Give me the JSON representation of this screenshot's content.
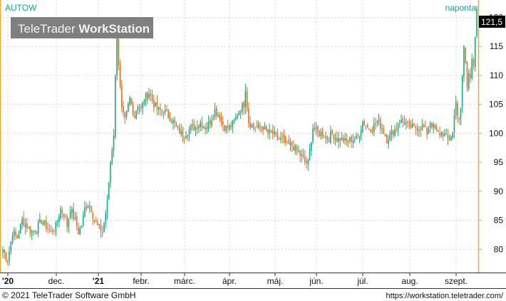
{
  "chart_data": {
    "type": "candlestick",
    "symbol": "AUTOW",
    "interval": "naponta",
    "watermark": {
      "brand_light": "TeleTrader ",
      "brand_bold": "WorkStation"
    },
    "last_price": "121,5",
    "ylim": [
      76,
      123
    ],
    "y_ticks": [
      {
        "value": 80,
        "label": "80"
      },
      {
        "value": 85,
        "label": "85"
      },
      {
        "value": 90,
        "label": "90"
      },
      {
        "value": 95,
        "label": "95"
      },
      {
        "value": 100,
        "label": "100"
      },
      {
        "value": 105,
        "label": "105"
      },
      {
        "value": 110,
        "label": "110"
      },
      {
        "value": 115,
        "label": "115"
      },
      {
        "value": 120,
        "label": "120"
      }
    ],
    "x_ticks": [
      {
        "label": "'20",
        "bold": true
      },
      {
        "label": "dec.",
        "bold": false
      },
      {
        "label": "'21",
        "bold": true
      },
      {
        "label": "febr.",
        "bold": false
      },
      {
        "label": "márc.",
        "bold": false
      },
      {
        "label": "ápr.",
        "bold": false
      },
      {
        "label": "máj.",
        "bold": false
      },
      {
        "label": "jún.",
        "bold": false
      },
      {
        "label": "júl.",
        "bold": false
      },
      {
        "label": "aug.",
        "bold": false
      },
      {
        "label": "szept.",
        "bold": false
      }
    ],
    "price_path": [
      [
        0,
        80
      ],
      [
        3,
        78
      ],
      [
        6,
        83
      ],
      [
        9,
        82
      ],
      [
        12,
        85
      ],
      [
        15,
        84
      ],
      [
        18,
        83
      ],
      [
        21,
        83.5
      ],
      [
        24,
        85
      ],
      [
        27,
        84
      ],
      [
        30,
        83
      ],
      [
        33,
        84
      ],
      [
        36,
        87
      ],
      [
        38,
        86
      ],
      [
        40,
        84
      ],
      [
        42,
        87
      ],
      [
        45,
        85
      ],
      [
        47,
        83
      ],
      [
        49,
        84
      ],
      [
        51,
        87
      ],
      [
        53,
        88
      ],
      [
        55,
        87
      ],
      [
        57,
        85
      ],
      [
        59,
        84
      ],
      [
        62,
        83
      ],
      [
        65,
        88
      ],
      [
        67,
        95
      ],
      [
        69,
        100
      ],
      [
        71,
        119
      ],
      [
        72,
        112
      ],
      [
        74,
        104
      ],
      [
        76,
        102
      ],
      [
        79,
        106
      ],
      [
        82,
        103
      ],
      [
        84,
        105
      ],
      [
        86,
        104
      ],
      [
        88,
        106
      ],
      [
        91,
        107
      ],
      [
        94,
        105
      ],
      [
        97,
        104
      ],
      [
        100,
        104
      ],
      [
        103,
        103
      ],
      [
        106,
        102
      ],
      [
        108,
        101
      ],
      [
        111,
        100
      ],
      [
        114,
        100
      ],
      [
        117,
        101
      ],
      [
        120,
        101
      ],
      [
        123,
        102
      ],
      [
        126,
        101
      ],
      [
        129,
        102
      ],
      [
        132,
        104
      ],
      [
        135,
        103
      ],
      [
        138,
        101
      ],
      [
        141,
        101
      ],
      [
        144,
        102
      ],
      [
        147,
        104
      ],
      [
        150,
        105
      ],
      [
        151,
        108
      ],
      [
        153,
        102
      ],
      [
        156,
        101
      ],
      [
        159,
        101
      ],
      [
        162,
        101
      ],
      [
        165,
        100
      ],
      [
        168,
        100
      ],
      [
        171,
        99
      ],
      [
        174,
        99
      ],
      [
        177,
        98
      ],
      [
        180,
        98
      ],
      [
        183,
        97
      ],
      [
        186,
        96
      ],
      [
        188,
        95
      ],
      [
        190,
        95
      ],
      [
        192,
        99
      ],
      [
        193,
        101
      ],
      [
        196,
        100
      ],
      [
        199,
        100
      ],
      [
        202,
        99
      ],
      [
        205,
        100
      ],
      [
        208,
        99
      ],
      [
        211,
        99
      ],
      [
        214,
        98.5
      ],
      [
        217,
        99
      ],
      [
        220,
        99
      ],
      [
        222,
        100
      ],
      [
        224,
        102
      ],
      [
        227,
        101
      ],
      [
        230,
        101
      ],
      [
        233,
        102
      ],
      [
        236,
        101
      ],
      [
        239,
        99
      ],
      [
        242,
        100
      ],
      [
        245,
        101
      ],
      [
        247,
        102
      ],
      [
        250,
        102
      ],
      [
        253,
        101
      ],
      [
        256,
        101
      ],
      [
        259,
        101
      ],
      [
        262,
        101
      ],
      [
        264,
        100
      ],
      [
        266,
        102
      ],
      [
        268,
        101
      ],
      [
        271,
        100
      ],
      [
        274,
        100
      ],
      [
        277,
        99
      ],
      [
        280,
        100
      ],
      [
        281,
        103
      ],
      [
        282,
        106
      ],
      [
        283,
        103
      ],
      [
        284,
        102
      ],
      [
        285,
        104
      ],
      [
        286,
        110
      ],
      [
        287,
        115
      ],
      [
        288,
        112
      ],
      [
        289,
        108
      ],
      [
        290,
        111
      ],
      [
        291,
        110
      ],
      [
        292,
        113
      ],
      [
        293,
        111
      ],
      [
        295,
        121.5
      ]
    ]
  },
  "footer": {
    "copyright": "© 2021  TeleTrader Software GmbH",
    "url": "https://workstation.teletrader.com/"
  },
  "colors": {
    "up": "#13a87e",
    "down": "#ee6a1c",
    "axis_frame": "#f5a623",
    "last_price_bg": "#000000",
    "symbol_text": "#13a87e",
    "watermark_bg": "#7f7f7f"
  }
}
